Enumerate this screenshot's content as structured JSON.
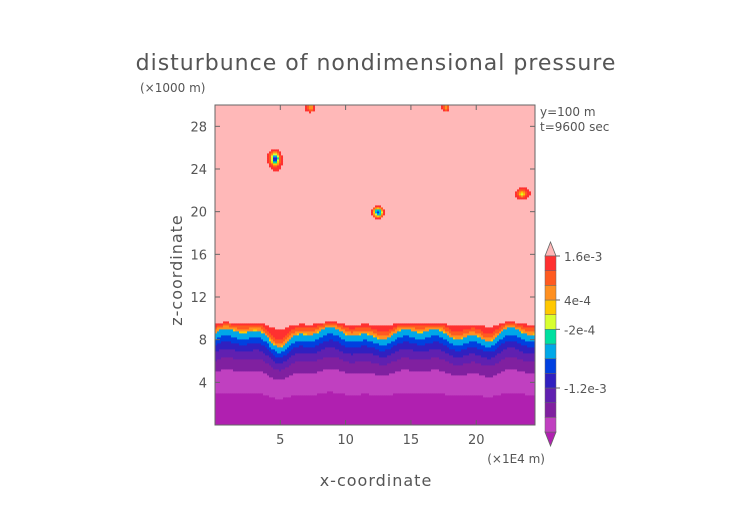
{
  "chart_data": {
    "type": "heatmap",
    "title": "disturbunce of nondimensional pressure",
    "z_scale_label": "(×1000 m)",
    "x_scale_label": "(×1E4 m)",
    "xlabel": "x-coordinate",
    "ylabel": "z-coordinate",
    "annotations": [
      "y=100 m",
      "t=9600 sec"
    ],
    "xlim": [
      0,
      24.5
    ],
    "ylim": [
      0,
      30
    ],
    "xticks": [
      5,
      10,
      15,
      20
    ],
    "yticks": [
      4,
      8,
      12,
      16,
      20,
      24,
      28
    ],
    "colorbar_ticks": [
      {
        "label": "1.6e-3",
        "level_index": 12
      },
      {
        "label": "4e-4",
        "level_index": 9
      },
      {
        "label": "-2e-4",
        "level_index": 7
      },
      {
        "label": "-1.2e-3",
        "level_index": 3
      }
    ],
    "levels": [
      -1.8,
      -1.6,
      -1.4,
      -1.2,
      -1.0,
      -0.8,
      -0.4,
      -0.2,
      0.2,
      0.4,
      0.8,
      1.2,
      1.6
    ],
    "level_units": "×1e-3",
    "colors": [
      "#b020b0",
      "#c040c0",
      "#8020a0",
      "#6020b0",
      "#3020c0",
      "#0040e0",
      "#00a8e8",
      "#00e0a0",
      "#d8ff30",
      "#ffc800",
      "#ff9020",
      "#ff5a20",
      "#ff3030",
      "#ffb8b8"
    ],
    "grid": false,
    "legend": "colorbar-right"
  }
}
